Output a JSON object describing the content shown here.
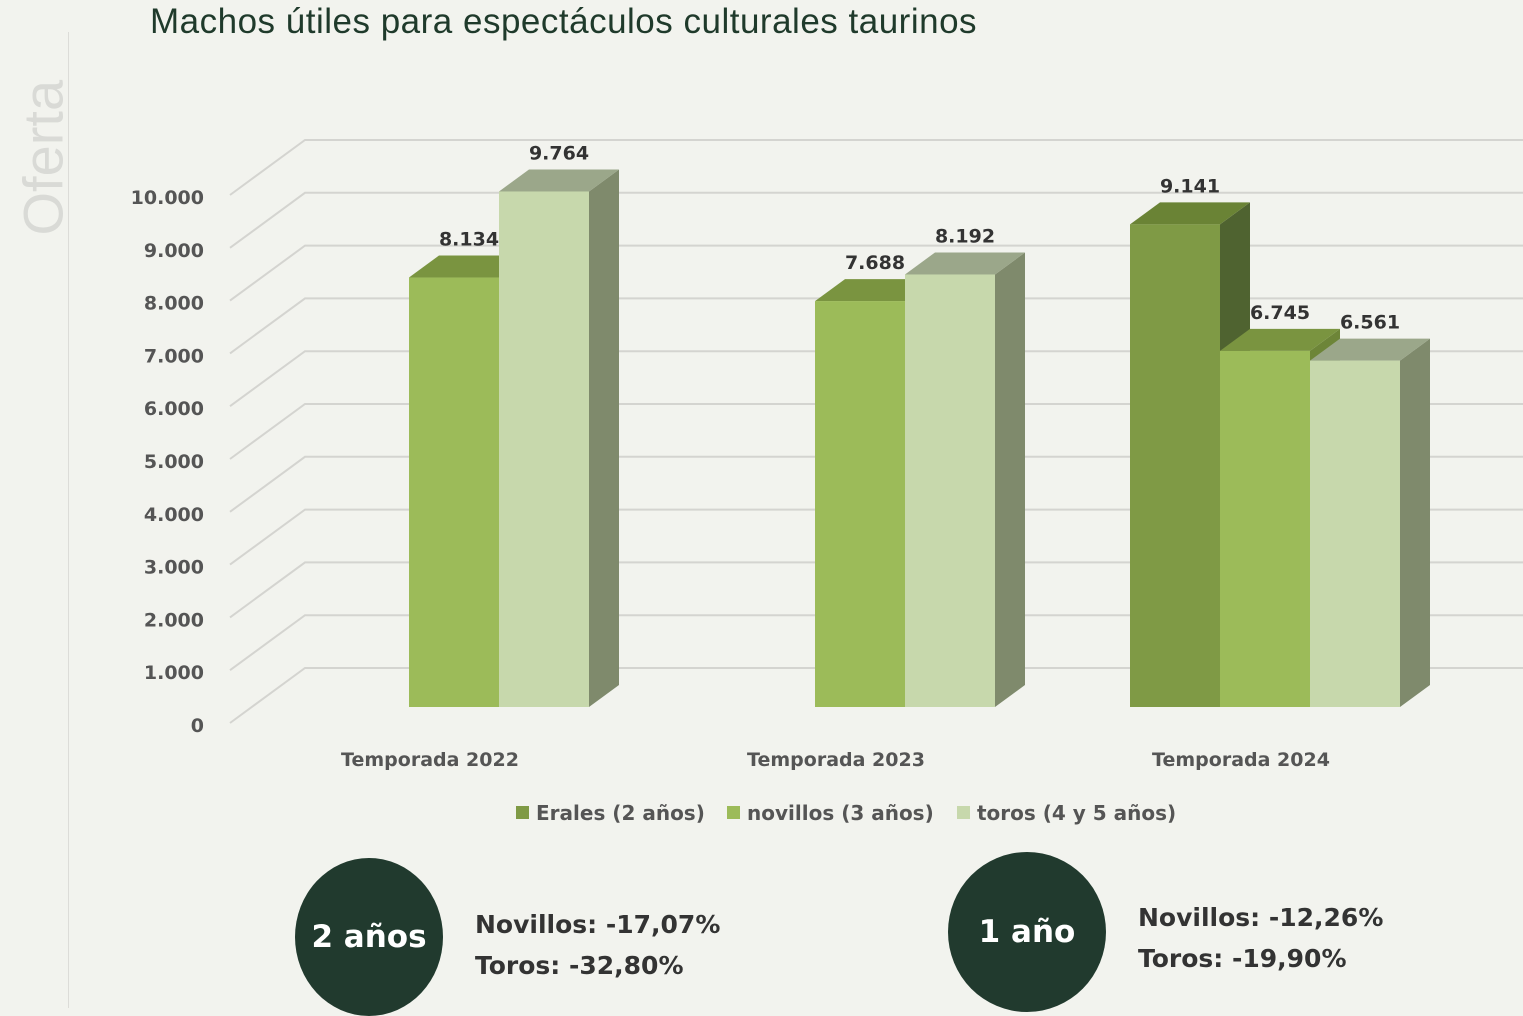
{
  "side_label": "Oferta",
  "chart_data": {
    "type": "bar",
    "style": "3d-clustered",
    "title": "Machos útiles para espectáculos culturales taurinos",
    "categories": [
      "Temporada 2022",
      "Temporada 2023",
      "Temporada 2024"
    ],
    "series": [
      {
        "name": "Erales (2 años)",
        "values": [
          null,
          null,
          9141
        ],
        "labels": [
          "",
          "",
          "9.141"
        ],
        "color": "#7f9a45"
      },
      {
        "name": "novillos (3 años)",
        "values": [
          8134,
          7688,
          6745
        ],
        "labels": [
          "8.134",
          "7.688",
          "6.745"
        ],
        "color": "#9cbb59"
      },
      {
        "name": "toros (4 y 5 años)",
        "values": [
          9764,
          8192,
          6561
        ],
        "labels": [
          "9.764",
          "8.192",
          "6.561"
        ],
        "color": "#c7d8ac"
      }
    ],
    "ylim": [
      0,
      10000
    ],
    "yticks": [
      0,
      1000,
      2000,
      3000,
      4000,
      5000,
      6000,
      7000,
      8000,
      9000,
      10000
    ],
    "ytick_labels": [
      "0",
      "1.000",
      "2.000",
      "3.000",
      "4.000",
      "5.000",
      "6.000",
      "7.000",
      "8.000",
      "9.000",
      "10.000"
    ],
    "grid": true,
    "legend": "bottom"
  },
  "summaries": [
    {
      "badge": "2 años",
      "lines": [
        "Novillos: -17,07%",
        "Toros: -32,80%"
      ]
    },
    {
      "badge": "1 año",
      "lines": [
        "Novillos: -12,26%",
        "Toros: -19,90%"
      ]
    }
  ],
  "colors": {
    "dark": "#213a2e",
    "title": "#1f3a2b"
  }
}
